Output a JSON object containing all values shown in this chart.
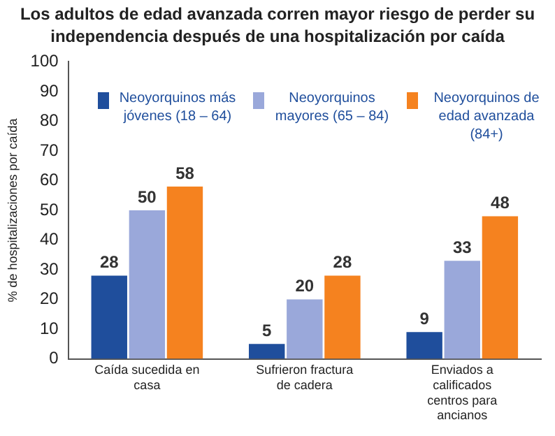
{
  "chart_data": {
    "type": "bar",
    "title": "Los adultos de edad avanzada corren mayor riesgo de perder su independencia después de una hospitalización por caída",
    "ylabel": "% de hospitalizaciones por caída",
    "categories": [
      "Caída sucedida en casa",
      "Sufrieron fractura de cadera",
      "Enviados a calificados centros para ancianos"
    ],
    "series": [
      {
        "name": "Neoyorquinos más jóvenes (18 – 64)",
        "color": "#1f4e9c",
        "values": [
          28,
          5,
          9
        ]
      },
      {
        "name": "Neoyorquinos mayores (65 – 84)",
        "color": "#9aa8da",
        "values": [
          50,
          20,
          33
        ]
      },
      {
        "name": "Neoyorquinos de edad avanzada (84+)",
        "color": "#f5821f",
        "values": [
          58,
          28,
          48
        ]
      }
    ],
    "ylim": [
      0,
      100
    ],
    "yticks": [
      0,
      10,
      20,
      30,
      40,
      50,
      60,
      70,
      80,
      90,
      100
    ],
    "grid": false,
    "legend": "top",
    "data_labels": true
  }
}
